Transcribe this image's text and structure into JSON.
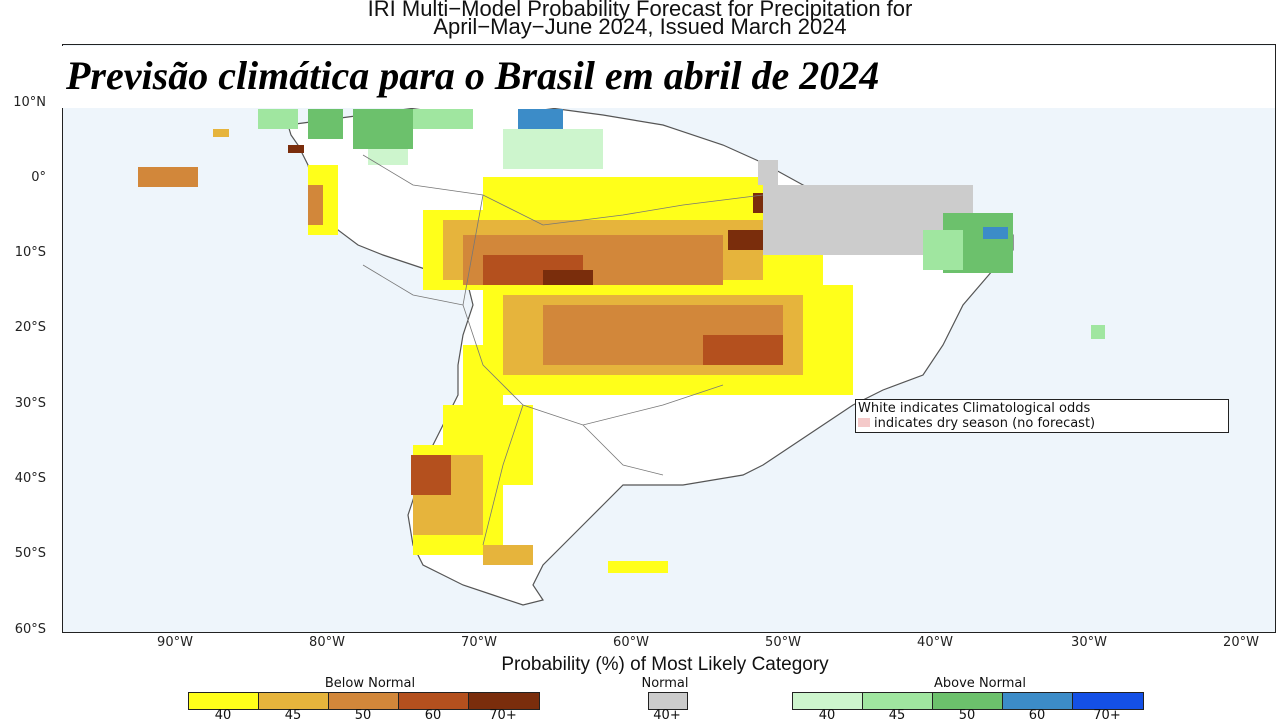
{
  "header": {
    "title_line1": "IRI Multi−Model Probability Forecast for Precipitation for",
    "title_line2": "April−May−June 2024, Issued March 2024",
    "banner": "Previsão climática para o Brasil em abril de 2024"
  },
  "map": {
    "lat_labels": [
      "10°N",
      "0°",
      "10°S",
      "20°S",
      "30°S",
      "40°S",
      "50°S",
      "60°S"
    ],
    "lon_labels": [
      "90°W",
      "80°W",
      "70°W",
      "60°W",
      "50°W",
      "40°W",
      "30°W",
      "20°W"
    ],
    "note_line1": "White indicates Climatological odds",
    "note_line2": "indicates dry season (no forecast)",
    "dry_season_color": "#f4c9c9",
    "ocean_color": "#eef5fb"
  },
  "legend": {
    "title": "Probability (%) of Most Likely Category",
    "below_normal": {
      "label": "Below Normal",
      "ticks": [
        "40",
        "45",
        "50",
        "60",
        "70+"
      ],
      "colors": [
        "#ffff1a",
        "#e6b43c",
        "#d2873a",
        "#b4501e",
        "#7a2d0c"
      ]
    },
    "normal": {
      "label": "Normal",
      "ticks": [
        "40+"
      ],
      "colors": [
        "#cccccc"
      ]
    },
    "above_normal": {
      "label": "Above Normal",
      "ticks": [
        "40",
        "45",
        "50",
        "60",
        "70+"
      ],
      "colors": [
        "#cdf5cd",
        "#a0e6a0",
        "#6cc16c",
        "#3c8cc8",
        "#1450e6"
      ]
    }
  }
}
